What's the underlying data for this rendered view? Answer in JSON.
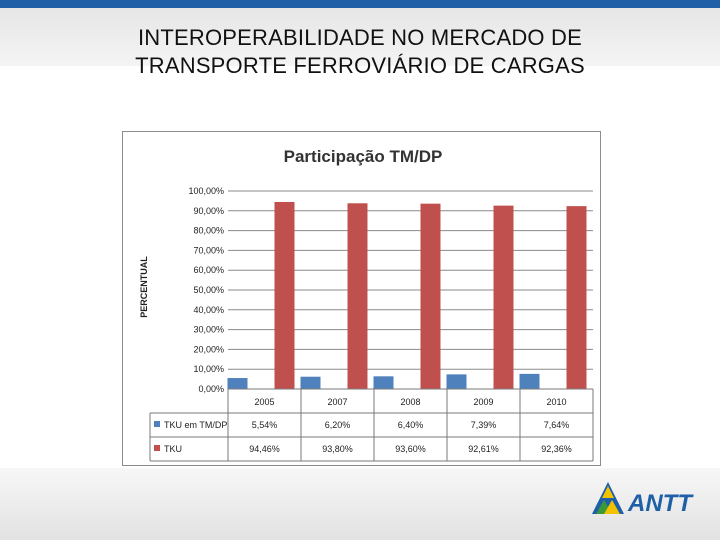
{
  "slide": {
    "title_line1": "INTEROPERABILIDADE NO MERCADO DE",
    "title_line2": "TRANSPORTE FERROVIÁRIO DE CARGAS"
  },
  "logo": {
    "text": "ANTT"
  },
  "colors": {
    "series1": "#4f81bd",
    "series2": "#c0504d",
    "top_bar": "#1f5fa8"
  },
  "chart_data": {
    "type": "bar",
    "title": "Participação TM/DP",
    "ylabel": "PERCENTUAL",
    "xlabel": "",
    "ylim": [
      0,
      100
    ],
    "yticks": [
      "0,00%",
      "10,00%",
      "20,00%",
      "30,00%",
      "40,00%",
      "50,00%",
      "60,00%",
      "70,00%",
      "80,00%",
      "90,00%",
      "100,00%"
    ],
    "grid": true,
    "legend": "data-table",
    "categories": [
      "2005",
      "2007",
      "2008",
      "2009",
      "2010"
    ],
    "series": [
      {
        "name": "TKU em TM/DP",
        "color": "#4f81bd",
        "values": [
          5.54,
          6.2,
          6.4,
          7.39,
          7.64
        ],
        "labels": [
          "5,54%",
          "6,20%",
          "6,40%",
          "7,39%",
          "7,64%"
        ]
      },
      {
        "name": "TKU",
        "color": "#c0504d",
        "values": [
          94.46,
          93.8,
          93.6,
          92.61,
          92.36
        ],
        "labels": [
          "94,46%",
          "93,80%",
          "93,60%",
          "92,61%",
          "92,36%"
        ]
      }
    ]
  }
}
